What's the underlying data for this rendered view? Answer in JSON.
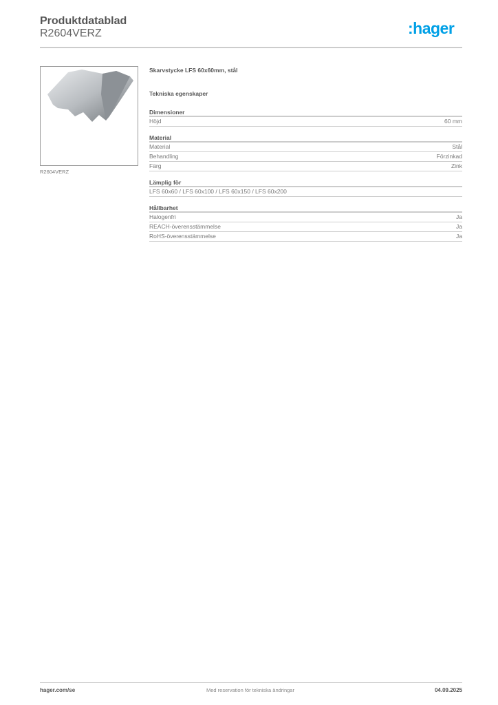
{
  "header": {
    "title": "Produktdatablad",
    "code": "R2604VERZ",
    "logo": ":hager",
    "brand_color": "#00a0e6"
  },
  "image": {
    "caption": "R2604VERZ"
  },
  "product": {
    "name": "Skarvstycke LFS 60x60mm, stål",
    "section_title": "Tekniska egenskaper"
  },
  "sections": [
    {
      "title": "Dimensioner",
      "rows": [
        {
          "label": "Höjd",
          "value": "60 mm"
        }
      ]
    },
    {
      "title": "Material",
      "rows": [
        {
          "label": "Material",
          "value": "Stål"
        },
        {
          "label": "Behandling",
          "value": "Förzinkad"
        },
        {
          "label": "Färg",
          "value": "Zink"
        }
      ]
    },
    {
      "title": "Lämplig för",
      "rows": [
        {
          "label": "LFS 60x60 / LFS 60x100 / LFS 60x150 / LFS 60x200",
          "value": ""
        }
      ]
    },
    {
      "title": "Hållbarhet",
      "rows": [
        {
          "label": "Halogenfri",
          "value": "Ja"
        },
        {
          "label": "REACH-överensstämmelse",
          "value": "Ja"
        },
        {
          "label": "RoHS-överensstämmelse",
          "value": "Ja"
        }
      ]
    }
  ],
  "footer": {
    "left": "hager.com/se",
    "center": "Med reservation för tekniska ändringar",
    "right": "04.09.2025"
  }
}
